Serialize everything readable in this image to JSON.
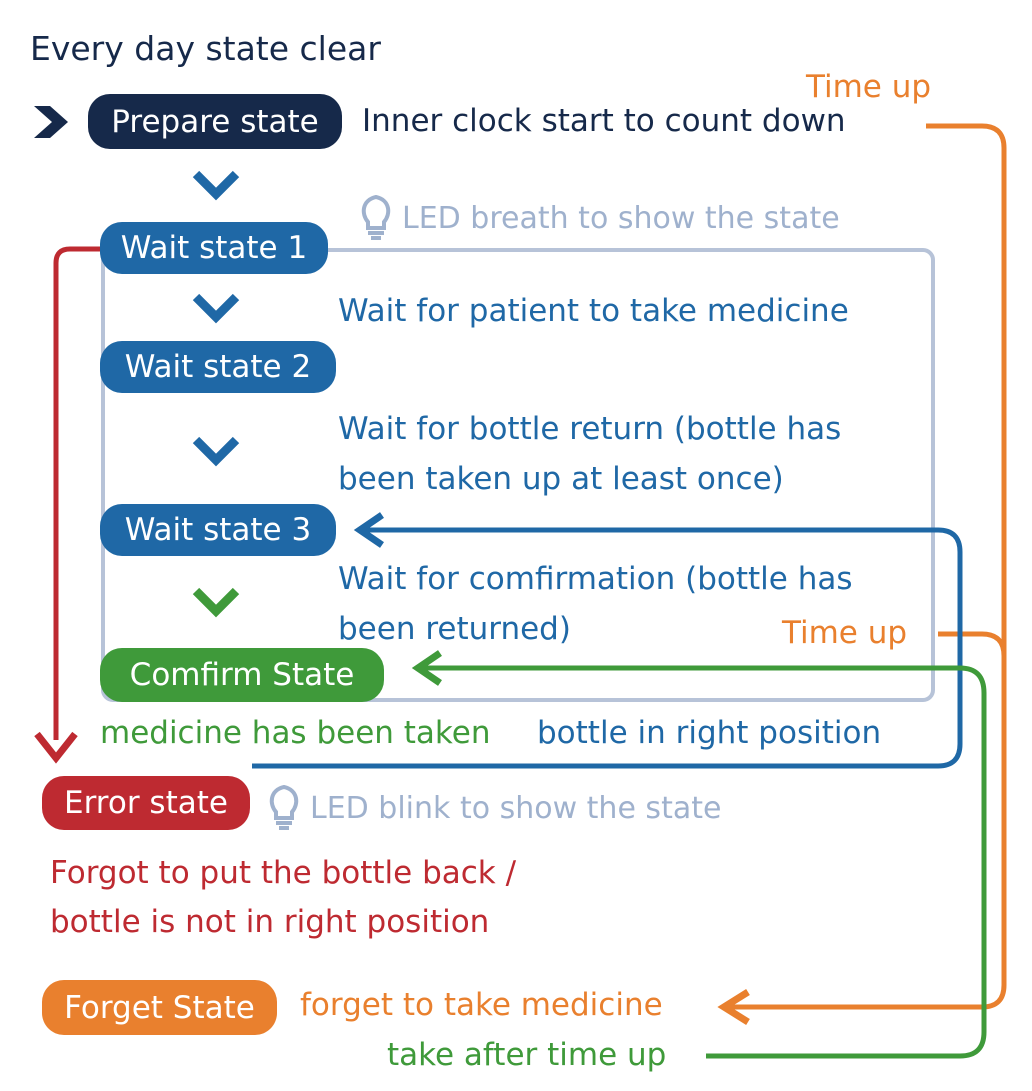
{
  "header": {
    "title": "Every day state clear"
  },
  "states": {
    "prepare": "Prepare state",
    "wait1": "Wait state 1",
    "wait2": "Wait state 2",
    "wait3": "Wait state 3",
    "confirm": "Comfirm State",
    "error": "Error state",
    "forget": "Forget State"
  },
  "labels": {
    "time_up_top": "Time up",
    "countdown": "Inner clock start to count down",
    "led_breath": "LED breath to show the state",
    "wait_patient": "Wait for patient to take medicine",
    "wait_return_l1": "Wait for bottle return (bottle has",
    "wait_return_l2": "been taken up at least once)",
    "wait_confirm_l1": "Wait for comfirmation (bottle has",
    "wait_confirm_l2": "been returned)",
    "time_up_mid": "Time up",
    "medicine_taken": "medicine has been taken",
    "bottle_position": "bottle in right position",
    "led_blink": "LED blink to show the state",
    "forgot_l1": "Forgot to put the bottle back /",
    "forgot_l2": "bottle is not in right position",
    "forget_take": "forget to take medicine",
    "take_after": "take after time up"
  },
  "colors": {
    "navy": "#16294a",
    "blue": "#1f68a6",
    "green": "#3f9a3a",
    "orange": "#e9802e",
    "red": "#be2a31",
    "grey": "#9fb1cd"
  },
  "icons": [
    "chevron-right-icon",
    "chevron-down-icon",
    "lightbulb-icon",
    "arrow-left-icon",
    "arrow-down-icon"
  ]
}
